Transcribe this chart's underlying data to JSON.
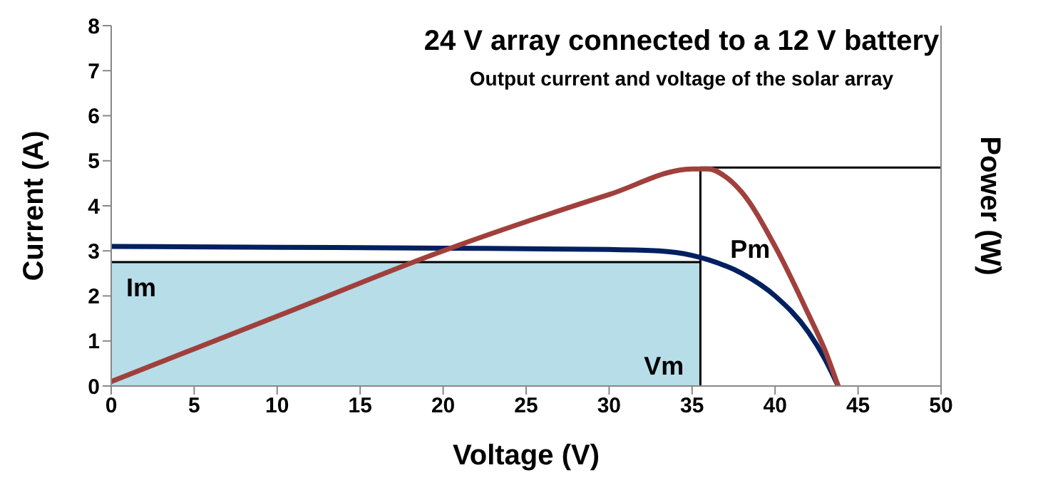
{
  "chart_data": {
    "type": "line",
    "title": "24 V array connected to a 12 V battery",
    "subtitle": "Output current and voltage of the solar array",
    "xlabel": "Voltage (V)",
    "ylabel": "Current (A)",
    "y2label": "Power (W)",
    "xlim": [
      0,
      50
    ],
    "xticks": [
      0,
      5,
      10,
      15,
      20,
      25,
      30,
      35,
      40,
      45,
      50
    ],
    "ylim": [
      0,
      8
    ],
    "yticks": [
      0,
      1,
      2,
      3,
      4,
      5,
      6,
      7,
      8
    ],
    "marker": "none",
    "series": [
      {
        "type": "area",
        "color": "#b7dde8",
        "x": [
          0,
          35.5
        ],
        "values": [
          2.75,
          2.75
        ]
      },
      {
        "color": "#000000",
        "x": [
          35.5,
          35.5,
          50
        ],
        "values": [
          0,
          4.85,
          4.85
        ]
      },
      {
        "color": "#002060",
        "x": [
          0,
          10,
          20,
          30,
          33,
          35,
          36,
          38,
          40,
          42,
          43,
          43.8
        ],
        "values": [
          3.1,
          3.08,
          3.06,
          3.03,
          3.0,
          2.9,
          2.8,
          2.5,
          2.0,
          1.2,
          0.6,
          0
        ]
      },
      {
        "color": "#a0403c",
        "x": [
          0,
          10,
          20,
          30,
          35,
          36,
          37,
          38,
          40,
          42,
          43,
          43.8
        ],
        "values": [
          0.1,
          1.55,
          3.0,
          4.25,
          4.82,
          4.82,
          4.65,
          4.3,
          3.1,
          1.6,
          0.8,
          0
        ]
      }
    ],
    "annotations": [
      "Im",
      "Pm",
      "Vm"
    ]
  }
}
